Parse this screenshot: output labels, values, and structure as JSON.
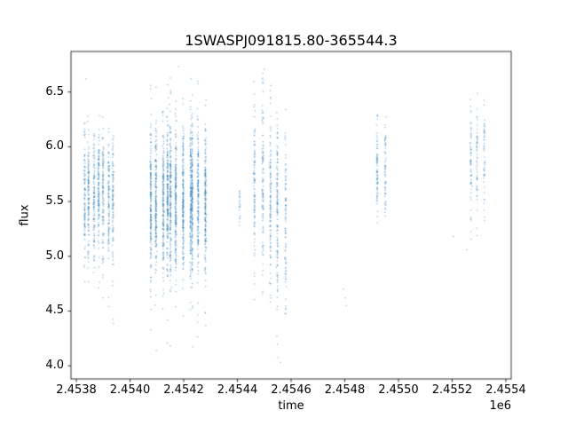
{
  "chart_data": {
    "type": "scatter",
    "title": "1SWASPJ091815.80-365544.3",
    "xlabel": "time",
    "ylabel": "flux",
    "x_offset_label": "1e6",
    "x_unit_scale": 1000000,
    "grid": false,
    "legend_position": "none",
    "point_color": "#1f77b4",
    "xlim": [
      2.45378,
      2.45542
    ],
    "ylim": [
      3.88,
      6.87
    ],
    "xticks": {
      "values": [
        2.4538,
        2.454,
        2.4542,
        2.4544,
        2.4546,
        2.4548,
        2.455,
        2.4552,
        2.4554
      ],
      "labels": [
        "2.4538",
        "2.4540",
        "2.4542",
        "2.4544",
        "2.4546",
        "2.4548",
        "2.4550",
        "2.4552",
        "2.4554"
      ]
    },
    "yticks": {
      "values": [
        4.0,
        4.5,
        5.0,
        5.5,
        6.0,
        6.5
      ],
      "labels": [
        "4.0",
        "4.5",
        "5.0",
        "5.5",
        "6.0",
        "6.5"
      ]
    },
    "clusters": [
      {
        "t_center": 2.453885,
        "t_halfwidth": 5.5e-05,
        "stripes": 7,
        "n": 800,
        "flux_mean": 5.55,
        "flux_sd": 0.3,
        "flux_range": [
          4.38,
          6.32
        ],
        "outlier_frac": 0.02
      },
      {
        "t_center": 2.45418,
        "t_halfwidth": 0.0001,
        "stripes": 11,
        "n": 2100,
        "flux_mean": 5.5,
        "flux_sd": 0.34,
        "flux_range": [
          4.1,
          6.72
        ],
        "outlier_frac": 0.04
      },
      {
        "t_center": 2.454408,
        "t_halfwidth": 4e-06,
        "stripes": 1,
        "n": 20,
        "flux_mean": 5.45,
        "flux_sd": 0.1,
        "flux_range": [
          5.25,
          5.62
        ],
        "outlier_frac": 0.0
      },
      {
        "t_center": 2.454495,
        "t_halfwidth": 3e-05,
        "stripes": 3,
        "n": 320,
        "flux_mean": 5.6,
        "flux_sd": 0.42,
        "flux_range": [
          4.55,
          6.72
        ],
        "outlier_frac": 0.03
      },
      {
        "t_center": 2.454565,
        "t_halfwidth": 1.5e-05,
        "stripes": 2,
        "n": 220,
        "flux_mean": 5.35,
        "flux_sd": 0.5,
        "flux_range": [
          4.0,
          6.35
        ],
        "outlier_frac": 0.05
      },
      {
        "t_center": 2.454935,
        "t_halfwidth": 1.5e-05,
        "stripes": 2,
        "n": 130,
        "flux_mean": 5.8,
        "flux_sd": 0.26,
        "flux_range": [
          5.3,
          6.35
        ],
        "outlier_frac": 0.0
      },
      {
        "t_center": 2.455293,
        "t_halfwidth": 2.5e-05,
        "stripes": 3,
        "n": 160,
        "flux_mean": 5.88,
        "flux_sd": 0.28,
        "flux_range": [
          5.0,
          6.55
        ],
        "outlier_frac": 0.03
      }
    ],
    "extra_points": [
      [
        2.453835,
        6.62
      ],
      [
        2.45418,
        6.73
      ],
      [
        2.4545,
        6.71
      ],
      [
        2.454795,
        4.7
      ],
      [
        2.454801,
        4.62
      ],
      [
        2.454806,
        4.55
      ],
      [
        2.45456,
        4.03
      ],
      [
        2.455255,
        5.06
      ],
      [
        2.455205,
        5.18
      ]
    ]
  }
}
